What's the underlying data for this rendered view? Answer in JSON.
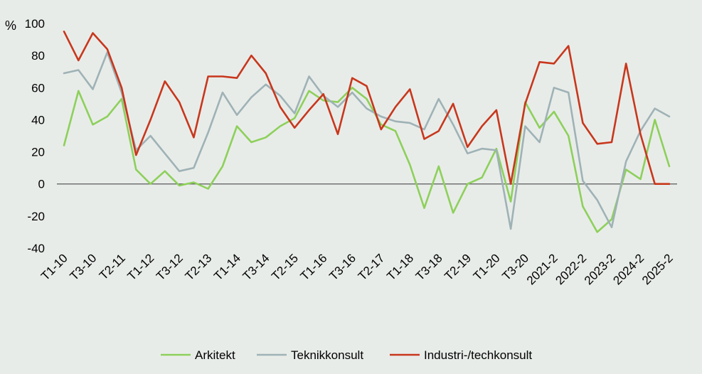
{
  "chart_data": {
    "type": "line",
    "title": "",
    "ylabel": "%",
    "ylim": [
      -40,
      100
    ],
    "yticks": [
      100,
      80,
      60,
      40,
      20,
      0,
      -20,
      -40
    ],
    "grid": false,
    "legend_position": "bottom",
    "x_tick_labels": [
      "T1-10",
      "T3-10",
      "T2-11",
      "T1-12",
      "T3-12",
      "T2-13",
      "T1-14",
      "T3-14",
      "T2-15",
      "T1-16",
      "T3-16",
      "T2-17",
      "T1-18",
      "T3-18",
      "T2-19",
      "T1-20",
      "T3-20",
      "2021-2",
      "2022-2",
      "2023-2",
      "2024-2",
      "2025-2"
    ],
    "x_tick_positions": [
      0,
      2,
      4,
      6,
      8,
      10,
      12,
      14,
      16,
      18,
      20,
      22,
      24,
      26,
      28,
      30,
      32,
      34,
      36,
      38,
      40,
      42
    ],
    "series": [
      {
        "name": "Arkitekt",
        "color": "#8dd05a",
        "values": [
          24,
          58,
          37,
          42,
          53,
          9,
          0,
          8,
          -1,
          1,
          -3,
          11,
          36,
          26,
          29,
          36,
          41,
          58,
          52,
          51,
          60,
          53,
          37,
          33,
          12,
          -15,
          11,
          -18,
          0,
          4,
          22,
          -11,
          51,
          35,
          45,
          30,
          -14,
          -30,
          -22,
          9,
          3,
          40,
          11
        ]
      },
      {
        "name": "Teknikkonsult",
        "color": "#9fb2b6",
        "values": [
          69,
          71,
          59,
          82,
          57,
          21,
          30,
          19,
          8,
          10,
          32,
          57,
          43,
          54,
          62,
          55,
          44,
          67,
          55,
          48,
          57,
          47,
          42,
          39,
          38,
          34,
          53,
          37,
          19,
          22,
          21,
          -28,
          36,
          26,
          60,
          57,
          2,
          -10,
          -27,
          14,
          33,
          47,
          42
        ]
      },
      {
        "name": "Industri-/techkonsult",
        "color": "#c8371c",
        "values": [
          95,
          77,
          94,
          84,
          60,
          18,
          40,
          64,
          51,
          29,
          67,
          67,
          66,
          80,
          69,
          48,
          35,
          46,
          56,
          31,
          66,
          61,
          34,
          48,
          59,
          28,
          33,
          50,
          23,
          36,
          46,
          0,
          50,
          76,
          75,
          86,
          38,
          25,
          26,
          75,
          31,
          0,
          0
        ]
      }
    ]
  }
}
